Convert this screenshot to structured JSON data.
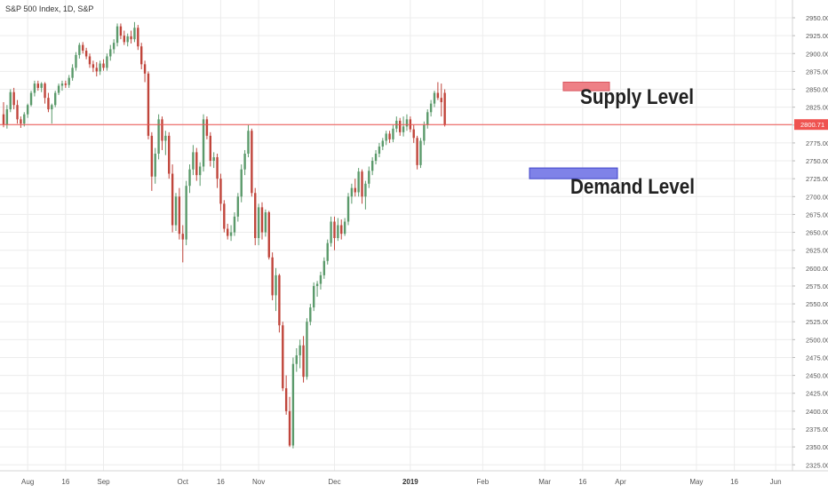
{
  "header": {
    "title": "S&P 500 Index, 1D, S&P"
  },
  "colors": {
    "up_candle": "#5b9a6b",
    "down_candle": "#c0453b",
    "price_line": "#ef5350",
    "supply_zone": "#ee8086",
    "demand_zone": "#7f82e8",
    "grid": "#ececec"
  },
  "chart_data": {
    "type": "candlestick",
    "symbol": "S&P 500 Index",
    "interval": "1D",
    "source": "S&P",
    "y_axis": {
      "range": [
        2315,
        2960
      ],
      "ticks": [
        2325,
        2350,
        2375,
        2400,
        2425,
        2450,
        2475,
        2500,
        2525,
        2550,
        2575,
        2600,
        2625,
        2650,
        2675,
        2700,
        2725,
        2750,
        2775,
        2800,
        2825,
        2850,
        2875,
        2900,
        2925,
        2950
      ],
      "tick_labels": [
        "2325.00",
        "2350.00",
        "2375.00",
        "2400.00",
        "2425.00",
        "2450.00",
        "2475.00",
        "2500.00",
        "2525.00",
        "2550.00",
        "2575.00",
        "2600.00",
        "2625.00",
        "2650.00",
        "2675.00",
        "2700.00",
        "2725.00",
        "2750.00",
        "2775.00",
        "2800.00",
        "2825.00",
        "2850.00",
        "2875.00",
        "2900.00",
        "2925.00",
        "2950.00"
      ]
    },
    "x_axis": {
      "labels": [
        "Aug",
        "16",
        "Sep",
        "Oct",
        "16",
        "Nov",
        "Dec",
        "2019",
        "Feb",
        "Mar",
        "16",
        "Apr",
        "May",
        "16",
        "Jun"
      ],
      "label_slots": [
        7,
        18,
        29,
        52,
        63,
        74,
        96,
        118,
        139,
        157,
        168,
        179,
        201,
        212,
        224
      ],
      "grid": true
    },
    "last_price": 2800.71,
    "last_price_label": "2800.71",
    "candles": [
      [
        2815,
        2832,
        2797,
        2801
      ],
      [
        2801,
        2828,
        2795,
        2822
      ],
      [
        2822,
        2850,
        2818,
        2846
      ],
      [
        2846,
        2852,
        2822,
        2828
      ],
      [
        2828,
        2835,
        2802,
        2808
      ],
      [
        2808,
        2812,
        2796,
        2802
      ],
      [
        2802,
        2818,
        2798,
        2815
      ],
      [
        2815,
        2830,
        2810,
        2828
      ],
      [
        2828,
        2848,
        2826,
        2845
      ],
      [
        2845,
        2862,
        2840,
        2858
      ],
      [
        2858,
        2862,
        2848,
        2852
      ],
      [
        2852,
        2860,
        2846,
        2858
      ],
      [
        2858,
        2860,
        2830,
        2838
      ],
      [
        2838,
        2845,
        2818,
        2822
      ],
      [
        2822,
        2830,
        2802,
        2828
      ],
      [
        2828,
        2848,
        2825,
        2845
      ],
      [
        2845,
        2858,
        2842,
        2855
      ],
      [
        2855,
        2862,
        2848,
        2858
      ],
      [
        2858,
        2862,
        2852,
        2856
      ],
      [
        2856,
        2870,
        2852,
        2866
      ],
      [
        2866,
        2885,
        2862,
        2880
      ],
      [
        2880,
        2902,
        2876,
        2898
      ],
      [
        2898,
        2915,
        2893,
        2912
      ],
      [
        2912,
        2916,
        2900,
        2904
      ],
      [
        2904,
        2908,
        2892,
        2896
      ],
      [
        2896,
        2900,
        2880,
        2885
      ],
      [
        2885,
        2890,
        2874,
        2880
      ],
      [
        2880,
        2888,
        2868,
        2875
      ],
      [
        2875,
        2890,
        2870,
        2886
      ],
      [
        2886,
        2892,
        2876,
        2880
      ],
      [
        2880,
        2900,
        2876,
        2896
      ],
      [
        2896,
        2912,
        2890,
        2906
      ],
      [
        2906,
        2920,
        2900,
        2915
      ],
      [
        2915,
        2942,
        2910,
        2938
      ],
      [
        2938,
        2942,
        2920,
        2925
      ],
      [
        2925,
        2932,
        2912,
        2916
      ],
      [
        2916,
        2928,
        2910,
        2924
      ],
      [
        2924,
        2932,
        2914,
        2920
      ],
      [
        2920,
        2944,
        2916,
        2936
      ],
      [
        2936,
        2940,
        2905,
        2910
      ],
      [
        2910,
        2915,
        2878,
        2885
      ],
      [
        2885,
        2890,
        2860,
        2872
      ],
      [
        2872,
        2875,
        2780,
        2785
      ],
      [
        2785,
        2790,
        2708,
        2728
      ],
      [
        2728,
        2768,
        2718,
        2760
      ],
      [
        2760,
        2815,
        2752,
        2808
      ],
      [
        2808,
        2812,
        2765,
        2778
      ],
      [
        2778,
        2792,
        2758,
        2785
      ],
      [
        2785,
        2790,
        2725,
        2732
      ],
      [
        2732,
        2745,
        2650,
        2660
      ],
      [
        2660,
        2705,
        2652,
        2700
      ],
      [
        2700,
        2712,
        2640,
        2648
      ],
      [
        2648,
        2660,
        2608,
        2640
      ],
      [
        2640,
        2722,
        2632,
        2715
      ],
      [
        2715,
        2745,
        2705,
        2738
      ],
      [
        2738,
        2772,
        2730,
        2762
      ],
      [
        2762,
        2768,
        2722,
        2730
      ],
      [
        2730,
        2748,
        2715,
        2742
      ],
      [
        2742,
        2815,
        2735,
        2808
      ],
      [
        2808,
        2812,
        2780,
        2785
      ],
      [
        2785,
        2790,
        2742,
        2750
      ],
      [
        2750,
        2762,
        2740,
        2755
      ],
      [
        2755,
        2760,
        2712,
        2725
      ],
      [
        2725,
        2732,
        2680,
        2690
      ],
      [
        2690,
        2695,
        2650,
        2655
      ],
      [
        2655,
        2662,
        2640,
        2645
      ],
      [
        2645,
        2660,
        2638,
        2650
      ],
      [
        2650,
        2678,
        2645,
        2672
      ],
      [
        2672,
        2705,
        2665,
        2700
      ],
      [
        2700,
        2745,
        2692,
        2738
      ],
      [
        2738,
        2765,
        2730,
        2760
      ],
      [
        2760,
        2800,
        2755,
        2792
      ],
      [
        2792,
        2795,
        2700,
        2705
      ],
      [
        2705,
        2712,
        2632,
        2642
      ],
      [
        2642,
        2690,
        2632,
        2685
      ],
      [
        2685,
        2692,
        2640,
        2650
      ],
      [
        2650,
        2682,
        2644,
        2678
      ],
      [
        2678,
        2680,
        2612,
        2615
      ],
      [
        2615,
        2622,
        2555,
        2562
      ],
      [
        2562,
        2600,
        2540,
        2590
      ],
      [
        2590,
        2592,
        2510,
        2520
      ],
      [
        2520,
        2525,
        2428,
        2432
      ],
      [
        2432,
        2450,
        2395,
        2400
      ],
      [
        2400,
        2420,
        2350,
        2352
      ],
      [
        2352,
        2475,
        2348,
        2466
      ],
      [
        2466,
        2488,
        2455,
        2478
      ],
      [
        2478,
        2500,
        2460,
        2492
      ],
      [
        2492,
        2505,
        2440,
        2448
      ],
      [
        2448,
        2530,
        2444,
        2525
      ],
      [
        2525,
        2550,
        2520,
        2545
      ],
      [
        2545,
        2580,
        2540,
        2575
      ],
      [
        2575,
        2582,
        2560,
        2578
      ],
      [
        2578,
        2595,
        2570,
        2590
      ],
      [
        2590,
        2615,
        2585,
        2610
      ],
      [
        2610,
        2640,
        2605,
        2635
      ],
      [
        2635,
        2672,
        2630,
        2665
      ],
      [
        2665,
        2672,
        2625,
        2642
      ],
      [
        2642,
        2670,
        2638,
        2660
      ],
      [
        2660,
        2668,
        2640,
        2648
      ],
      [
        2648,
        2670,
        2645,
        2665
      ],
      [
        2665,
        2705,
        2660,
        2700
      ],
      [
        2700,
        2718,
        2690,
        2712
      ],
      [
        2712,
        2725,
        2700,
        2706
      ],
      [
        2706,
        2740,
        2700,
        2735
      ],
      [
        2735,
        2738,
        2690,
        2700
      ],
      [
        2700,
        2722,
        2682,
        2718
      ],
      [
        2718,
        2742,
        2712,
        2736
      ],
      [
        2736,
        2755,
        2730,
        2750
      ],
      [
        2750,
        2765,
        2745,
        2760
      ],
      [
        2760,
        2775,
        2755,
        2770
      ],
      [
        2770,
        2782,
        2765,
        2778
      ],
      [
        2778,
        2792,
        2772,
        2788
      ],
      [
        2788,
        2792,
        2775,
        2780
      ],
      [
        2780,
        2800,
        2776,
        2795
      ],
      [
        2795,
        2812,
        2790,
        2806
      ],
      [
        2806,
        2810,
        2785,
        2790
      ],
      [
        2790,
        2812,
        2784,
        2798
      ],
      [
        2798,
        2815,
        2792,
        2808
      ],
      [
        2808,
        2812,
        2790,
        2794
      ],
      [
        2794,
        2800,
        2775,
        2782
      ],
      [
        2782,
        2785,
        2738,
        2744
      ],
      [
        2744,
        2782,
        2740,
        2778
      ],
      [
        2778,
        2805,
        2772,
        2800
      ],
      [
        2800,
        2822,
        2795,
        2818
      ],
      [
        2818,
        2835,
        2812,
        2830
      ],
      [
        2830,
        2848,
        2825,
        2845
      ],
      [
        2845,
        2860,
        2835,
        2838
      ],
      [
        2838,
        2858,
        2812,
        2832
      ],
      [
        2845,
        2850,
        2798,
        2800
      ]
    ],
    "annotations": [
      {
        "label": "Supply Level",
        "zone": [
          2848,
          2860
        ]
      },
      {
        "label": "Demand Level",
        "zone": [
          2725,
          2740
        ]
      }
    ]
  }
}
